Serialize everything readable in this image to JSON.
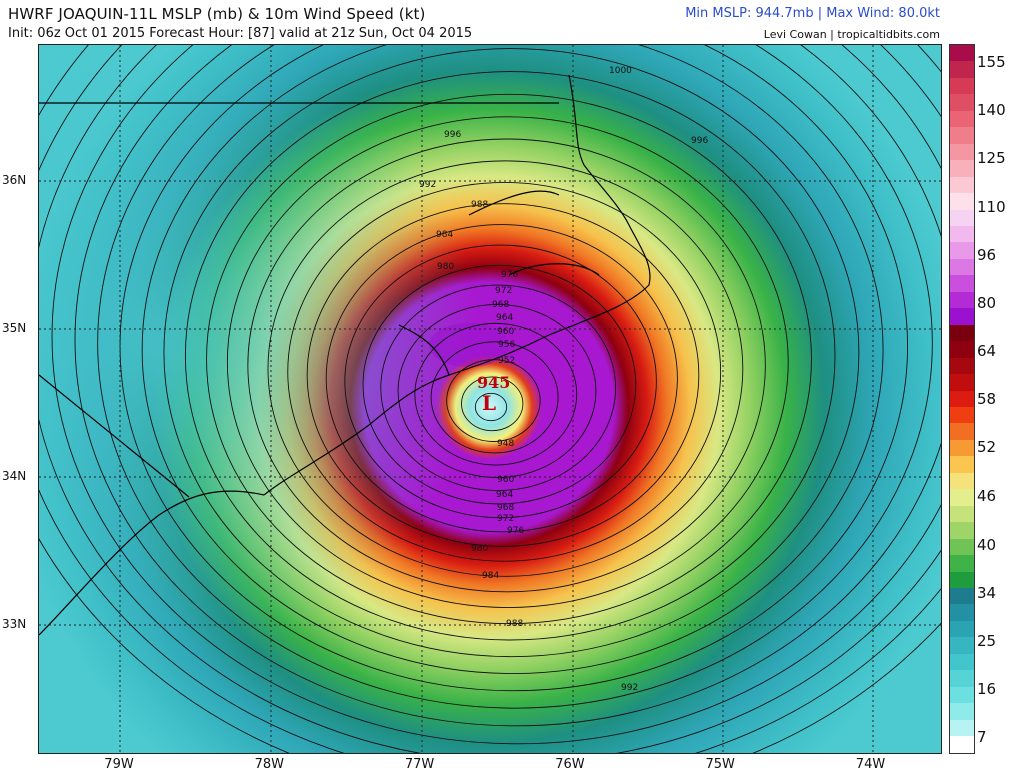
{
  "header": {
    "title": "HWRF JOAQUIN-11L MSLP (mb) & 10m Wind Speed (kt)",
    "init_line": "Init: 06z Oct 01 2015   Forecast Hour: [87]   valid at 21z Sun, Oct 04 2015",
    "stats": "Min MSLP: 944.7mb | Max Wind: 80.0kt",
    "credit": "Levi Cowan | tropicaltidbits.com"
  },
  "map": {
    "longitude_labels": [
      {
        "text": "79W",
        "lon": -79
      },
      {
        "text": "78W",
        "lon": -78
      },
      {
        "text": "77W",
        "lon": -77
      },
      {
        "text": "76W",
        "lon": -76
      },
      {
        "text": "75W",
        "lon": -75
      },
      {
        "text": "74W",
        "lon": -74
      }
    ],
    "latitude_labels": [
      {
        "text": "36N",
        "lat": 36
      },
      {
        "text": "35N",
        "lat": 35
      },
      {
        "text": "34N",
        "lat": 34
      },
      {
        "text": "33N",
        "lat": 33
      }
    ],
    "center_marker": "L",
    "center_pressure": "945",
    "isobar_labels": [
      "1000",
      "996",
      "996",
      "992",
      "988",
      "984",
      "980",
      "976",
      "972",
      "968",
      "964",
      "960",
      "956",
      "952",
      "948",
      "960",
      "964",
      "968",
      "972",
      "976",
      "980",
      "984",
      "988",
      "992"
    ]
  },
  "colorbar": {
    "labels": [
      "155",
      "140",
      "125",
      "110",
      "96",
      "80",
      "64",
      "58",
      "52",
      "46",
      "40",
      "34",
      "25",
      "16",
      "7"
    ],
    "colors": [
      "#a80c4a",
      "#c0254e",
      "#d63a55",
      "#e04e63",
      "#ea6474",
      "#f07e8a",
      "#f597a2",
      "#f8b1bb",
      "#fbc9d3",
      "#fde0ea",
      "#f7d3f3",
      "#f1b9ee",
      "#e89ae8",
      "#db78e3",
      "#c94fdc",
      "#b22bd4",
      "#9a12cf",
      "#7a0010",
      "#8e0010",
      "#a60810",
      "#c00e0e",
      "#dc1c10",
      "#ee3e12",
      "#f26e22",
      "#f69a34",
      "#fac650",
      "#f6e27a",
      "#e3ee8c",
      "#c5e37a",
      "#9fd468",
      "#6fc455",
      "#3fb348",
      "#1f9c3d",
      "#1d7d8e",
      "#2390a3",
      "#2aa3b2",
      "#35b6c0",
      "#43c6cb",
      "#55d3d5",
      "#6cdfe0",
      "#8feaea",
      "#b6f3f2",
      "#ffffff"
    ]
  }
}
